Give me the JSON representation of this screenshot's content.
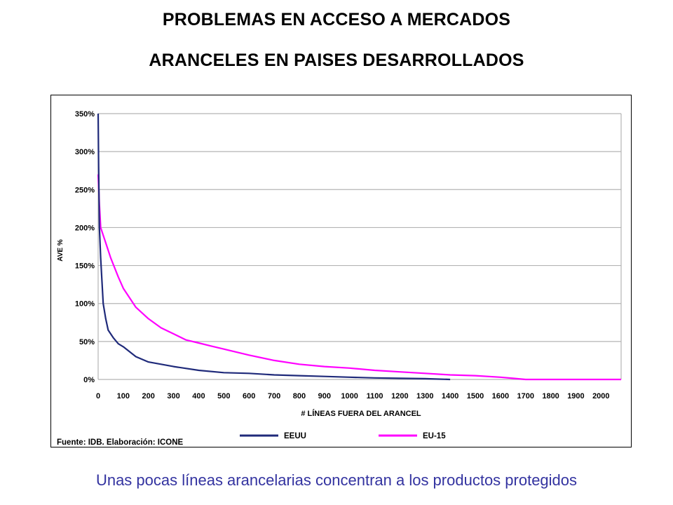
{
  "title_line1": "PROBLEMAS EN ACCESO A MERCADOS",
  "title_line2": "ARANCELES EN PAISES DESARROLLADOS",
  "caption": "Unas pocas líneas arancelarias concentran a los productos protegidos",
  "colors": {
    "eeuu": "#1f2a7a",
    "eu15": "#ff00ff",
    "caption": "#3333a0",
    "grid": "#b4b4b4",
    "border": "#000000"
  },
  "chart_data": {
    "type": "line",
    "title": "",
    "xlabel": "# LÍNEAS FUERA DEL ARANCEL",
    "ylabel": "AVE %",
    "source": "Fuente: IDB. Elaboración: ICONE",
    "xlim": [
      0,
      2080
    ],
    "ylim": [
      0,
      350
    ],
    "x_ticks": [
      0,
      100,
      200,
      300,
      400,
      500,
      600,
      700,
      800,
      900,
      1000,
      1100,
      1200,
      1300,
      1400,
      1500,
      1600,
      1700,
      1800,
      1900,
      2000
    ],
    "y_ticks": [
      0,
      50,
      100,
      150,
      200,
      250,
      300,
      350
    ],
    "y_tick_labels": [
      "0%",
      "50%",
      "100%",
      "150%",
      "200%",
      "250%",
      "300%",
      "350%"
    ],
    "grid": "horizontal",
    "legend_position": "bottom",
    "series": [
      {
        "name": "EEUU",
        "color": "#1f2a7a",
        "x": [
          0,
          2,
          5,
          10,
          15,
          20,
          30,
          40,
          60,
          80,
          100,
          150,
          200,
          250,
          300,
          400,
          500,
          600,
          700,
          800,
          900,
          1000,
          1100,
          1200,
          1300,
          1400
        ],
        "y": [
          350,
          280,
          200,
          160,
          130,
          100,
          80,
          65,
          55,
          47,
          43,
          30,
          23,
          20,
          17,
          12,
          9,
          8,
          6,
          5,
          4,
          3,
          2,
          1.5,
          1,
          0
        ]
      },
      {
        "name": "EU-15",
        "color": "#ff00ff",
        "x": [
          0,
          5,
          10,
          20,
          30,
          50,
          80,
          100,
          150,
          200,
          250,
          300,
          350,
          400,
          450,
          500,
          600,
          700,
          800,
          900,
          1000,
          1100,
          1200,
          1300,
          1400,
          1500,
          1600,
          1650,
          1700,
          2080
        ],
        "y": [
          270,
          230,
          200,
          190,
          180,
          160,
          135,
          120,
          95,
          80,
          68,
          60,
          52,
          48,
          44,
          40,
          32,
          25,
          20,
          17,
          15,
          12,
          10,
          8,
          6,
          5,
          3,
          1.5,
          0,
          0
        ]
      }
    ]
  }
}
